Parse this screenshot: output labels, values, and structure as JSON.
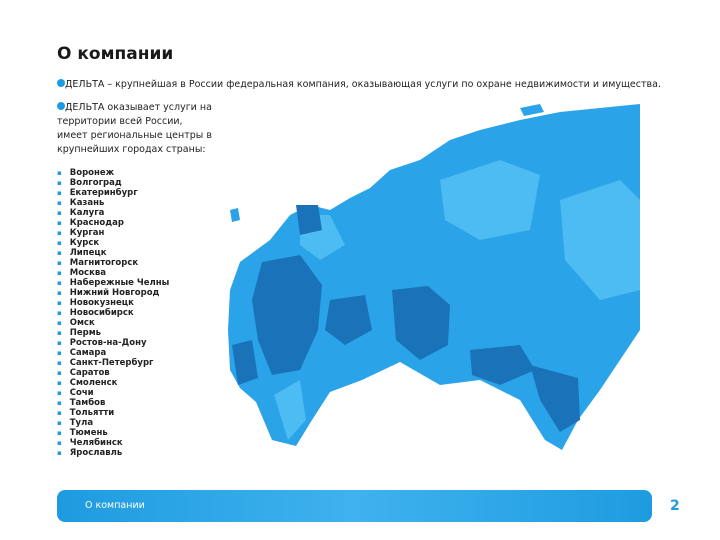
{
  "header": {
    "title": "О компании"
  },
  "bullets": [
    {
      "lines": [
        "ДЕЛЬТА – крупнейшая в России федеральная компания, оказывающая услуги по охране недвижимости и имущества."
      ]
    },
    {
      "lines": [
        "ДЕЛЬТА оказывает услуги на",
        "территории всей России,",
        "имеет региональные центры в",
        "крупнейших городах страны:"
      ]
    }
  ],
  "cities": [
    "Воронеж",
    "Волгоград",
    "Екатеринбург",
    "Казань",
    "Калуга",
    "Краснодар",
    "Курган",
    "Курск",
    "Липецк",
    "Магнитогорск",
    "Москва",
    "Набережные Челны",
    "Нижний Новгород",
    "Новокузнецк",
    "Новосибирск",
    "Омск",
    "Пермь",
    "Ростов-на-Дону",
    "Самара",
    "Санкт-Петербург",
    "Саратов",
    "Смоленск",
    "Сочи",
    "Тамбов",
    "Тольятти",
    "Тула",
    "Тюмень",
    "Челябинск",
    "Ярославль"
  ],
  "footer": {
    "label": "О компании",
    "page": "2"
  }
}
